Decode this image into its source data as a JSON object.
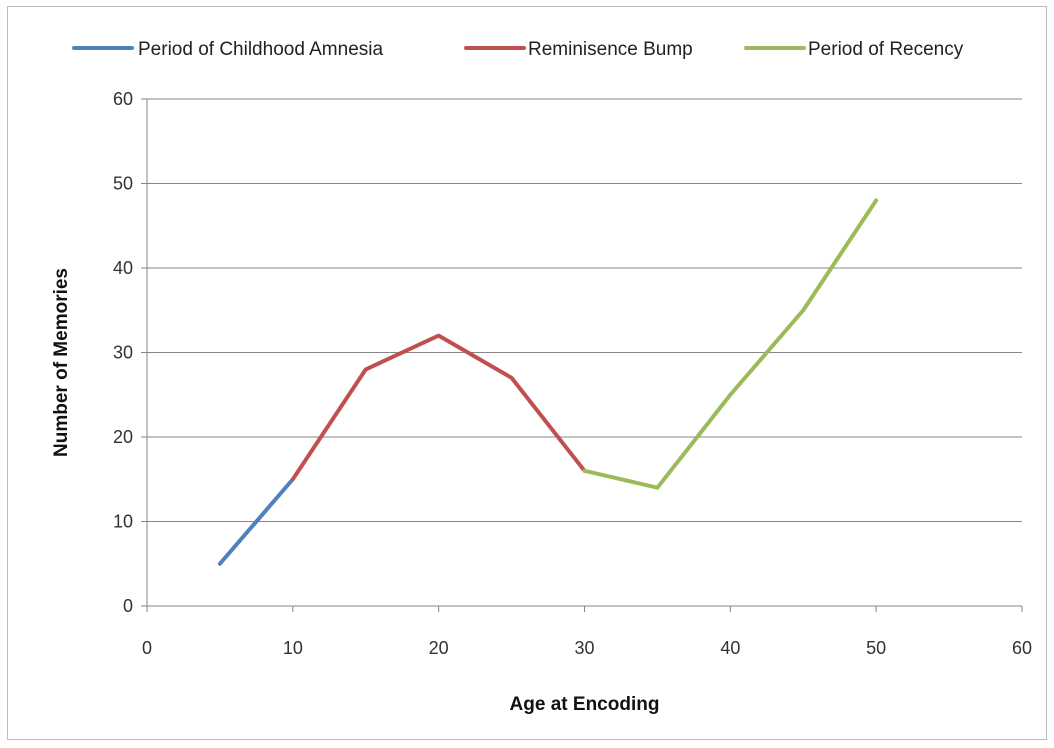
{
  "chart_data": {
    "type": "line",
    "title": "",
    "xlabel": "Age at Encoding",
    "ylabel": "Number of Memories",
    "xlim": [
      0,
      60
    ],
    "ylim": [
      0,
      60
    ],
    "xticks": [
      0,
      10,
      20,
      30,
      40,
      50,
      60
    ],
    "yticks": [
      0,
      10,
      20,
      30,
      40,
      50,
      60
    ],
    "grid": "horizontal",
    "legend_position": "top",
    "series": [
      {
        "name": "Period of Childhood  Amnesia",
        "color": "#4f81bd",
        "x": [
          5,
          10
        ],
        "y": [
          5,
          15
        ]
      },
      {
        "name": "Reminisence Bump",
        "color": "#c0504d",
        "x": [
          10,
          15,
          20,
          25,
          30
        ],
        "y": [
          15,
          28,
          32,
          27,
          16
        ]
      },
      {
        "name": "Period of Recency",
        "color": "#9bbb59",
        "x": [
          30,
          35,
          40,
          45,
          50
        ],
        "y": [
          16,
          14,
          25,
          35,
          48
        ]
      }
    ]
  }
}
